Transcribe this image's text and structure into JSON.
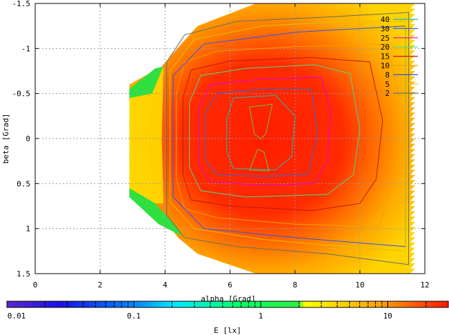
{
  "chart_data": {
    "type": "heatmap",
    "xlabel": "alpha [Grad]",
    "ylabel": "beta [Grad]",
    "xlim": [
      0,
      12
    ],
    "ylim": [
      -1.5,
      1.5
    ],
    "y_inverted": true,
    "grid": true,
    "x_ticks": [
      "0",
      "2",
      "4",
      "6",
      "8",
      "10",
      "12"
    ],
    "y_ticks": [
      "-1.5",
      "-1",
      "-0.5",
      "0",
      "0.5",
      "1",
      "1.5"
    ],
    "contour_levels": [
      {
        "label": "40",
        "value": 40,
        "color": "#22b8b0"
      },
      {
        "label": "30",
        "value": 30,
        "color": "#3a60d8"
      },
      {
        "label": "25",
        "value": 25,
        "color": "#e000e0"
      },
      {
        "label": "20",
        "value": 20,
        "color": "#50d890"
      },
      {
        "label": "15",
        "value": 15,
        "color": "#c01818"
      },
      {
        "label": "10",
        "value": 10,
        "color": "#f2a000"
      },
      {
        "label": "8",
        "value": 8,
        "color": "#3050f0"
      },
      {
        "label": "5",
        "value": 5,
        "color": "#e0c000"
      },
      {
        "label": "2",
        "value": 2,
        "color": "#607060"
      }
    ],
    "colorbar": {
      "label": "E [lx]",
      "scale": "log",
      "range": [
        0.01,
        30
      ],
      "tick_labels": [
        "0.01",
        "0.1",
        "1",
        "10"
      ]
    }
  }
}
